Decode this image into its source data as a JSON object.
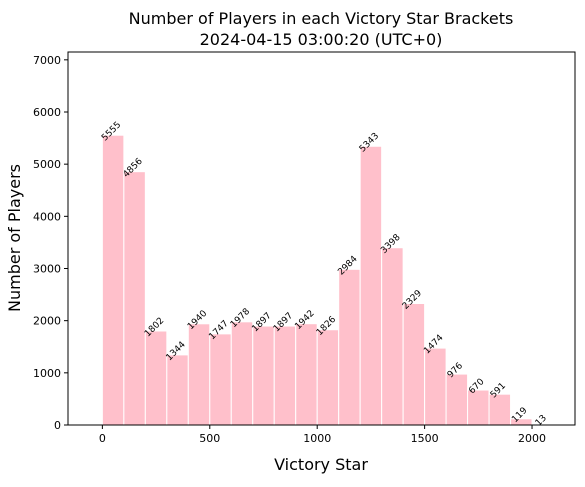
{
  "chart_data": {
    "type": "histogram",
    "title": "Number of Players in each Victory Star Brackets",
    "subtitle": "2024-04-15 03:00:20 (UTC+0)",
    "x_label": "Victory Star",
    "y_label": "Number of Players",
    "bins": [
      0,
      100,
      200,
      300,
      400,
      500,
      600,
      700,
      800,
      900,
      1000,
      1100,
      1200,
      1300,
      1400,
      1500,
      1600,
      1700,
      1800,
      1900,
      2000,
      2100
    ],
    "values": [
      5555,
      4856,
      1802,
      1344,
      1940,
      1747,
      1978,
      1897,
      1897,
      1942,
      1826,
      2984,
      5343,
      3398,
      2329,
      1474,
      976,
      670,
      591,
      119,
      13
    ],
    "color": "#ffc0cb",
    "xlim": [
      -160,
      2200
    ],
    "xticks": [
      0,
      500,
      1000,
      1500,
      2000
    ],
    "ylim": [
      0,
      7150
    ],
    "yticks": [
      0,
      1000,
      2000,
      3000,
      4000,
      5000,
      6000,
      7000
    ]
  }
}
